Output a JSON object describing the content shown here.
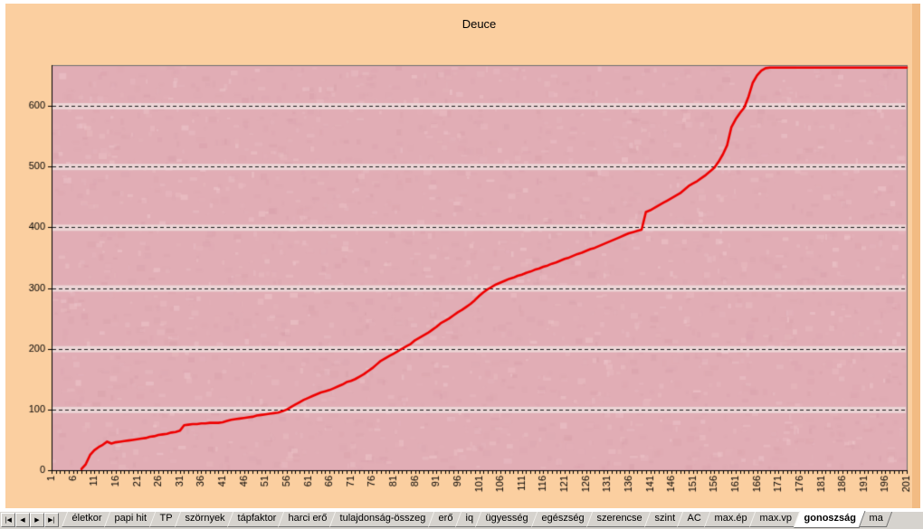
{
  "chart": {
    "title": "Deuce",
    "sheet_background": "#fbcfa0",
    "right_edge_color": "#f2bb83",
    "plot": {
      "background": "#e1adb5",
      "band_color": "#efdfdf",
      "border_color": "#6f6f6f",
      "axis_color": "#000000",
      "gridline_color": "#1a1a1a"
    }
  },
  "chart_data": {
    "type": "line",
    "title": "Deuce",
    "xlabel": "",
    "ylabel": "",
    "x_ticks": [
      1,
      6,
      11,
      16,
      21,
      26,
      31,
      36,
      41,
      46,
      51,
      56,
      61,
      66,
      71,
      76,
      81,
      86,
      91,
      96,
      101,
      106,
      111,
      116,
      121,
      126,
      131,
      136,
      141,
      146,
      151,
      156,
      161,
      166,
      171,
      176,
      181,
      186,
      191,
      196,
      201
    ],
    "y_ticks": [
      0,
      100,
      200,
      300,
      400,
      500,
      600
    ],
    "ylim": [
      0,
      667
    ],
    "grid": "horizontal-dashed",
    "legend": "none",
    "categories_range": [
      1,
      201
    ],
    "series": [
      {
        "name": "Deuce",
        "color": "#ee0000",
        "values": [
          null,
          null,
          null,
          null,
          null,
          null,
          null,
          2,
          10,
          25,
          33,
          38,
          42,
          47,
          44,
          46,
          47,
          48,
          49,
          50,
          51,
          52,
          53,
          55,
          56,
          58,
          59,
          60,
          62,
          63,
          65,
          74,
          75,
          76,
          76,
          77,
          77,
          78,
          78,
          78,
          79,
          81,
          83,
          84,
          85,
          86,
          87,
          88,
          90,
          91,
          92,
          93,
          94,
          95,
          97,
          100,
          104,
          108,
          112,
          116,
          119,
          122,
          125,
          128,
          130,
          132,
          135,
          138,
          141,
          145,
          147,
          150,
          154,
          158,
          163,
          168,
          174,
          180,
          184,
          188,
          192,
          196,
          200,
          204,
          208,
          214,
          218,
          222,
          226,
          231,
          236,
          242,
          246,
          250,
          255,
          260,
          264,
          269,
          274,
          280,
          287,
          293,
          298,
          302,
          306,
          309,
          312,
          315,
          317,
          320,
          322,
          325,
          327,
          330,
          332,
          335,
          337,
          340,
          342,
          345,
          348,
          350,
          353,
          356,
          358,
          361,
          364,
          366,
          369,
          372,
          375,
          378,
          381,
          384,
          387,
          390,
          392,
          394,
          396,
          425,
          428,
          432,
          436,
          440,
          444,
          448,
          452,
          456,
          462,
          468,
          472,
          476,
          481,
          486,
          492,
          498,
          508,
          520,
          535,
          565,
          578,
          588,
          597,
          615,
          638,
          650,
          658,
          662,
          663,
          663,
          663,
          663,
          663,
          663,
          663,
          663,
          663,
          663,
          663,
          663,
          663,
          663,
          663,
          663,
          663,
          663,
          663,
          663,
          663,
          663,
          663,
          663,
          663,
          663,
          663,
          663,
          663,
          663,
          663,
          663,
          663
        ]
      }
    ]
  },
  "sheet_tabs": {
    "nav_buttons": [
      {
        "name": "first",
        "glyph": "|◀"
      },
      {
        "name": "prev",
        "glyph": "◀"
      },
      {
        "name": "next",
        "glyph": "▶"
      },
      {
        "name": "last",
        "glyph": "▶|"
      }
    ],
    "tabs": [
      {
        "label": "életkor",
        "active": false
      },
      {
        "label": "papi hit",
        "active": false
      },
      {
        "label": "TP",
        "active": false
      },
      {
        "label": "szörnyek",
        "active": false
      },
      {
        "label": "tápfaktor",
        "active": false
      },
      {
        "label": "harci erő",
        "active": false
      },
      {
        "label": "tulajdonság-összeg",
        "active": false
      },
      {
        "label": "erő",
        "active": false
      },
      {
        "label": "iq",
        "active": false
      },
      {
        "label": "ügyesség",
        "active": false
      },
      {
        "label": "egészség",
        "active": false
      },
      {
        "label": "szerencse",
        "active": false
      },
      {
        "label": "szint",
        "active": false
      },
      {
        "label": "AC",
        "active": false
      },
      {
        "label": "max.ép",
        "active": false
      },
      {
        "label": "max.vp",
        "active": false
      },
      {
        "label": "gonoszság",
        "active": true
      },
      {
        "label": "ma",
        "active": false
      }
    ]
  }
}
